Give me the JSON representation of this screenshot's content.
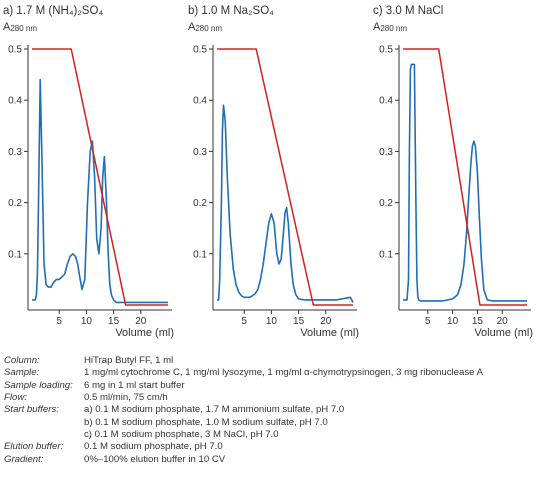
{
  "colors": {
    "uv": "#1f6eb8",
    "gradient": "#d62020",
    "axis": "#333333"
  },
  "chart_data": [
    {
      "type": "line",
      "title": "a) 1.7 M (NH₄)₂SO₄",
      "ylabel_main": "A",
      "ylabel_sub": "280 nm",
      "xlabel": "Volume (ml)",
      "xlim": [
        0,
        25
      ],
      "ylim": [
        0,
        0.5
      ],
      "xticks": [
        "5",
        "10",
        "15",
        "20"
      ],
      "yticks": [
        "0.1",
        "0.2",
        "0.3",
        "0.4",
        "0.5"
      ],
      "series": [
        {
          "key": "uv",
          "x": [
            0,
            0.3,
            0.6,
            0.8,
            1.0,
            1.2,
            1.5,
            1.8,
            2.2,
            2.6,
            3.0,
            3.5,
            4.0,
            4.5,
            5.0,
            5.5,
            6.0,
            6.5,
            7.0,
            7.5,
            8.0,
            8.4,
            8.7,
            9.2,
            9.7,
            10.2,
            10.7,
            11.1,
            11.5,
            11.9,
            12.3,
            12.7,
            13.0,
            13.3,
            13.7,
            14.0,
            14.3,
            14.6,
            15.0,
            15.5,
            16.0,
            17.0,
            18.0,
            25.0
          ],
          "y": [
            0.01,
            0.01,
            0.01,
            0.02,
            0.06,
            0.2,
            0.44,
            0.3,
            0.08,
            0.04,
            0.035,
            0.035,
            0.045,
            0.05,
            0.05,
            0.055,
            0.06,
            0.08,
            0.095,
            0.1,
            0.095,
            0.08,
            0.06,
            0.03,
            0.05,
            0.2,
            0.3,
            0.32,
            0.25,
            0.13,
            0.1,
            0.15,
            0.25,
            0.29,
            0.2,
            0.1,
            0.04,
            0.02,
            0.01,
            0.005,
            0.005,
            0.005,
            0.005,
            0.005
          ]
        },
        {
          "key": "gradient",
          "x": [
            0,
            7.2,
            17.2,
            25
          ],
          "y": [
            0.5,
            0.5,
            0,
            0
          ]
        }
      ]
    },
    {
      "type": "line",
      "title": "b) 1.0 M Na₂SO₄",
      "ylabel_main": "A",
      "ylabel_sub": "280 nm",
      "xlabel": "Volume (ml)",
      "xlim": [
        0,
        25
      ],
      "ylim": [
        0,
        0.5
      ],
      "xticks": [
        "5",
        "10",
        "15",
        "20"
      ],
      "yticks": [
        "0.1",
        "0.2",
        "0.3",
        "0.4",
        "0.5"
      ],
      "series": [
        {
          "key": "uv",
          "x": [
            0,
            0.3,
            0.5,
            0.8,
            1.0,
            1.2,
            1.5,
            1.9,
            2.4,
            3.0,
            3.5,
            4.0,
            4.5,
            5.0,
            5.5,
            6.0,
            6.5,
            7.0,
            7.5,
            8.0,
            8.5,
            9.0,
            9.5,
            10.0,
            10.5,
            11.0,
            11.4,
            11.8,
            12.2,
            12.5,
            12.8,
            13.1,
            13.6,
            14.0,
            14.5,
            15.0,
            16.0,
            17.0,
            18.0,
            22.0,
            24.5,
            25.0
          ],
          "y": [
            0.01,
            0.01,
            0.05,
            0.2,
            0.34,
            0.39,
            0.36,
            0.25,
            0.14,
            0.07,
            0.04,
            0.025,
            0.018,
            0.015,
            0.015,
            0.015,
            0.018,
            0.022,
            0.03,
            0.05,
            0.08,
            0.12,
            0.16,
            0.178,
            0.16,
            0.1,
            0.08,
            0.09,
            0.14,
            0.18,
            0.19,
            0.16,
            0.08,
            0.04,
            0.02,
            0.012,
            0.01,
            0.01,
            0.01,
            0.01,
            0.015,
            0.005
          ]
        },
        {
          "key": "gradient",
          "x": [
            0,
            7.2,
            17.7,
            25
          ],
          "y": [
            0.5,
            0.5,
            0,
            0
          ]
        }
      ]
    },
    {
      "type": "line",
      "title": "c) 3.0 M NaCl",
      "ylabel_main": "A",
      "ylabel_sub": "280 nm",
      "xlabel": "Volume (ml)",
      "xlim": [
        0,
        25
      ],
      "ylim": [
        0,
        0.5
      ],
      "xticks": [
        "5",
        "10",
        "15",
        "20"
      ],
      "yticks": [
        "0.1",
        "0.2",
        "0.3",
        "0.4",
        "0.5"
      ],
      "series": [
        {
          "key": "uv",
          "x": [
            0,
            0.8,
            1.1,
            1.3,
            1.5,
            1.7,
            2.0,
            2.3,
            2.6,
            2.8,
            3.0,
            3.2,
            3.5,
            4.0,
            5.0,
            6.0,
            7.0,
            8.0,
            9.0,
            10.0,
            11.0,
            11.7,
            12.3,
            12.8,
            13.3,
            13.7,
            14.0,
            14.3,
            14.6,
            15.0,
            15.4,
            15.8,
            16.3,
            17.0,
            18.0,
            25.0
          ],
          "y": [
            0.01,
            0.01,
            0.05,
            0.3,
            0.46,
            0.47,
            0.47,
            0.47,
            0.2,
            0.05,
            0.015,
            0.01,
            0.008,
            0.008,
            0.008,
            0.008,
            0.008,
            0.008,
            0.01,
            0.012,
            0.02,
            0.04,
            0.08,
            0.14,
            0.22,
            0.28,
            0.31,
            0.32,
            0.31,
            0.26,
            0.17,
            0.09,
            0.03,
            0.01,
            0.008,
            0.008
          ]
        },
        {
          "key": "gradient",
          "x": [
            0,
            7.2,
            15.5,
            25
          ],
          "y": [
            0.5,
            0.5,
            0,
            0
          ]
        }
      ]
    }
  ],
  "conditions": [
    {
      "label": "Column:",
      "lines": [
        "HiTrap Butyl FF, 1 ml"
      ]
    },
    {
      "label": "Sample:",
      "lines": [
        "1 mg/ml cytochrome C, 1 mg/ml lysozyme, 1 mg/ml α-chymotrypsinogen, 3 mg ribonuclease A"
      ]
    },
    {
      "label": "Sample loading:",
      "lines": [
        "6 mg in 1 ml start buffer"
      ]
    },
    {
      "label": "Flow:",
      "lines": [
        "0.5 ml/min, 75 cm/h"
      ]
    },
    {
      "label": "Start buffers:",
      "lines": [
        "a) 0.1 M sodium phosphate, 1.7 M ammonium sulfate, pH 7.0",
        "b) 0.1 M sodium phosphate, 1.0 M sodium sulfate, pH 7.0",
        "c) 0.1 M sodium phosphate, 3 M NaCl, pH 7.0"
      ]
    },
    {
      "label": "Elution buffer:",
      "lines": [
        "0.1 M sodium phosphate, pH 7.0"
      ]
    },
    {
      "label": "Gradient:",
      "lines": [
        "0%–100% elution buffer in 10 CV"
      ]
    }
  ]
}
